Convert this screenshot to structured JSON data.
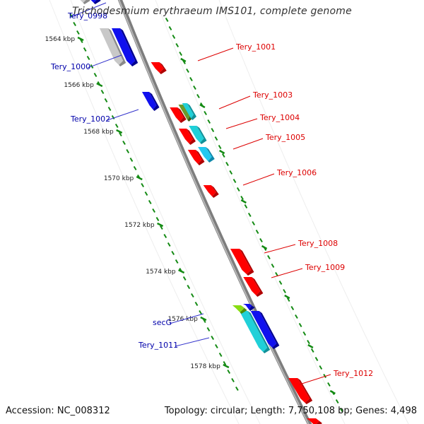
{
  "title": "Trichodesmium erythraeum IMS101, complete genome",
  "footer": {
    "accession": "Accession: NC_008312",
    "summary": "Topology: circular; Length: 7,750,108 bp; Genes: 4,498"
  },
  "colors": {
    "backbone": "#7d7d7d",
    "tick": "#138a13",
    "reverse_label": "#0000aa",
    "forward_label": "#dd0000",
    "connector_reverse": "#3333cc",
    "connector_forward": "#dd0000"
  },
  "kbp_ticks": [
    "1564 kbp",
    "1566 kbp",
    "1568 kbp",
    "1570 kbp",
    "1572 kbp",
    "1574 kbp",
    "1576 kbp",
    "1578 kbp"
  ],
  "reverse_genes": [
    {
      "name": "Tery_0998",
      "color": "blue"
    },
    {
      "name": "Tery_1000",
      "color": "blue"
    },
    {
      "name": "Tery_1002",
      "color": "blue"
    },
    {
      "name": "secG",
      "color": "blue"
    },
    {
      "name": "Tery_1011",
      "color": "blue"
    }
  ],
  "forward_genes": [
    {
      "name": "Tery_1001",
      "color": "red"
    },
    {
      "name": "Tery_1003",
      "color": "red"
    },
    {
      "name": "Tery_1004",
      "color": "red"
    },
    {
      "name": "Tery_1005",
      "color": "red"
    },
    {
      "name": "Tery_1006",
      "color": "red"
    },
    {
      "name": "Tery_1008",
      "color": "red"
    },
    {
      "name": "Tery_1009",
      "color": "red"
    },
    {
      "name": "Tery_1012",
      "color": "red"
    }
  ]
}
